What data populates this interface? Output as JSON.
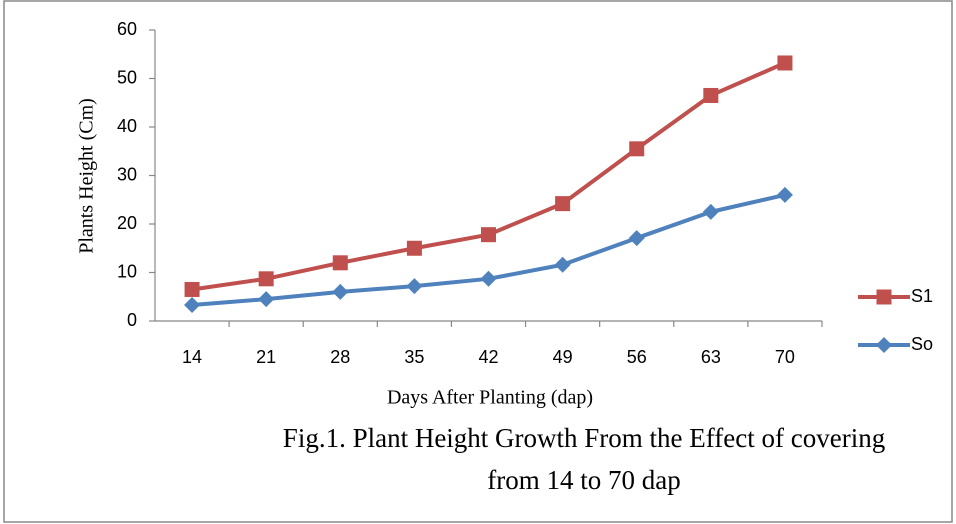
{
  "chart_data": {
    "type": "line",
    "categories": [
      "14",
      "21",
      "28",
      "35",
      "42",
      "49",
      "56",
      "63",
      "70"
    ],
    "series": [
      {
        "name": "S1",
        "color": "#c0504d",
        "marker": "square",
        "values": [
          6.5,
          8.7,
          12,
          15,
          17.8,
          24.2,
          35.5,
          46.5,
          53.2
        ]
      },
      {
        "name": "So",
        "color": "#4f81bd",
        "marker": "diamond",
        "values": [
          3.3,
          4.5,
          6,
          7.2,
          8.7,
          11.6,
          17.1,
          22.5,
          26
        ]
      }
    ],
    "ylim": [
      0,
      60
    ],
    "yticks": [
      0,
      10,
      20,
      30,
      40,
      50,
      60
    ],
    "grid": false,
    "ylabel": "Plants Height (Cm)",
    "xlabel": "Days After Planting (dap)",
    "legend": "right",
    "caption": [
      "Fig.1. Plant Height Growth From the Effect of covering",
      "from 14 to 70 dap"
    ]
  }
}
